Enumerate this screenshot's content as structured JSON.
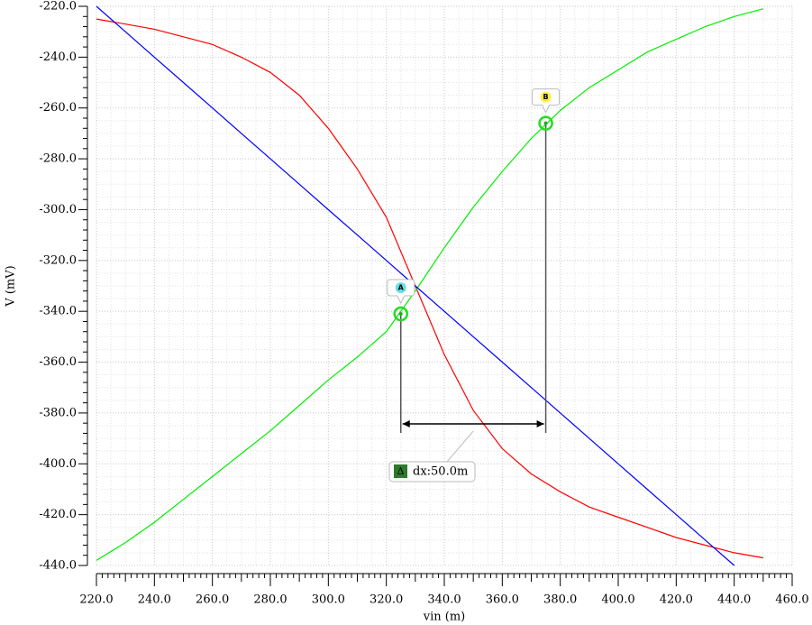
{
  "chart_data": {
    "type": "line",
    "ylabel": "V (mV)",
    "xlabel": "vin (m)",
    "x": [
      220,
      230,
      240,
      250,
      260,
      270,
      280,
      290,
      300,
      310,
      320,
      330,
      340,
      350,
      360,
      370,
      380,
      390,
      400,
      410,
      420,
      430,
      440,
      450
    ],
    "series": [
      {
        "color": "#ff0000",
        "values": [
          -225,
          -227,
          -229,
          -232,
          -235,
          -240,
          -246,
          -255,
          -268,
          -284,
          -303,
          -330,
          -357,
          -379,
          -394,
          -404,
          -411,
          -417,
          -421,
          -425,
          -429,
          -432,
          -435,
          -437
        ]
      },
      {
        "color": "#00ee00",
        "values": [
          -438,
          -431,
          -423,
          -414,
          -405,
          -396,
          -387,
          -377,
          -367,
          -358,
          -348,
          -332,
          -315,
          -299,
          -285,
          -272,
          -261,
          -252,
          -245,
          -238,
          -233,
          -228,
          -224,
          -221
        ]
      },
      {
        "color": "#0000ff",
        "values": [
          -220,
          -230,
          -240,
          -250,
          -260,
          -270,
          -280,
          -290,
          -300,
          -310,
          -320,
          -330,
          -340,
          -350,
          -360,
          -370,
          -380,
          -390,
          -400,
          -410,
          -420,
          -430,
          -440,
          null
        ]
      }
    ],
    "xlim": [
      220,
      460
    ],
    "ylim": [
      -440,
      -220
    ],
    "xticks": [
      {
        "value": 220,
        "label": "220.0"
      },
      {
        "value": 240,
        "label": "240.0"
      },
      {
        "value": 260,
        "label": "260.0"
      },
      {
        "value": 280,
        "label": "280.0"
      },
      {
        "value": 300,
        "label": "300.0"
      },
      {
        "value": 320,
        "label": "320.0"
      },
      {
        "value": 340,
        "label": "340.0"
      },
      {
        "value": 360,
        "label": "360.0"
      },
      {
        "value": 380,
        "label": "380.0"
      },
      {
        "value": 400,
        "label": "400.0"
      },
      {
        "value": 420,
        "label": "420.0"
      },
      {
        "value": 440,
        "label": "440.0"
      },
      {
        "value": 460,
        "label": "460.0"
      }
    ],
    "yticks": [
      {
        "value": -220,
        "label": "-220.0"
      },
      {
        "value": -240,
        "label": "-240.0"
      },
      {
        "value": -260,
        "label": "-260.0"
      },
      {
        "value": -280,
        "label": "-280.0"
      },
      {
        "value": -300,
        "label": "-300.0"
      },
      {
        "value": -320,
        "label": "-320.0"
      },
      {
        "value": -340,
        "label": "-340.0"
      },
      {
        "value": -360,
        "label": "-360.0"
      },
      {
        "value": -380,
        "label": "-380.0"
      },
      {
        "value": -400,
        "label": "-400.0"
      },
      {
        "value": -420,
        "label": "-420.0"
      },
      {
        "value": -440,
        "label": "-440.0"
      }
    ],
    "grid": true,
    "markers": [
      {
        "label": "A",
        "x": 325,
        "y": -341,
        "color": "#66e0e8"
      },
      {
        "label": "B",
        "x": 375,
        "y": -266,
        "color": "#ffee44"
      }
    ],
    "delta_symbol": "Δ",
    "delta_label": "dx:50.0m"
  }
}
